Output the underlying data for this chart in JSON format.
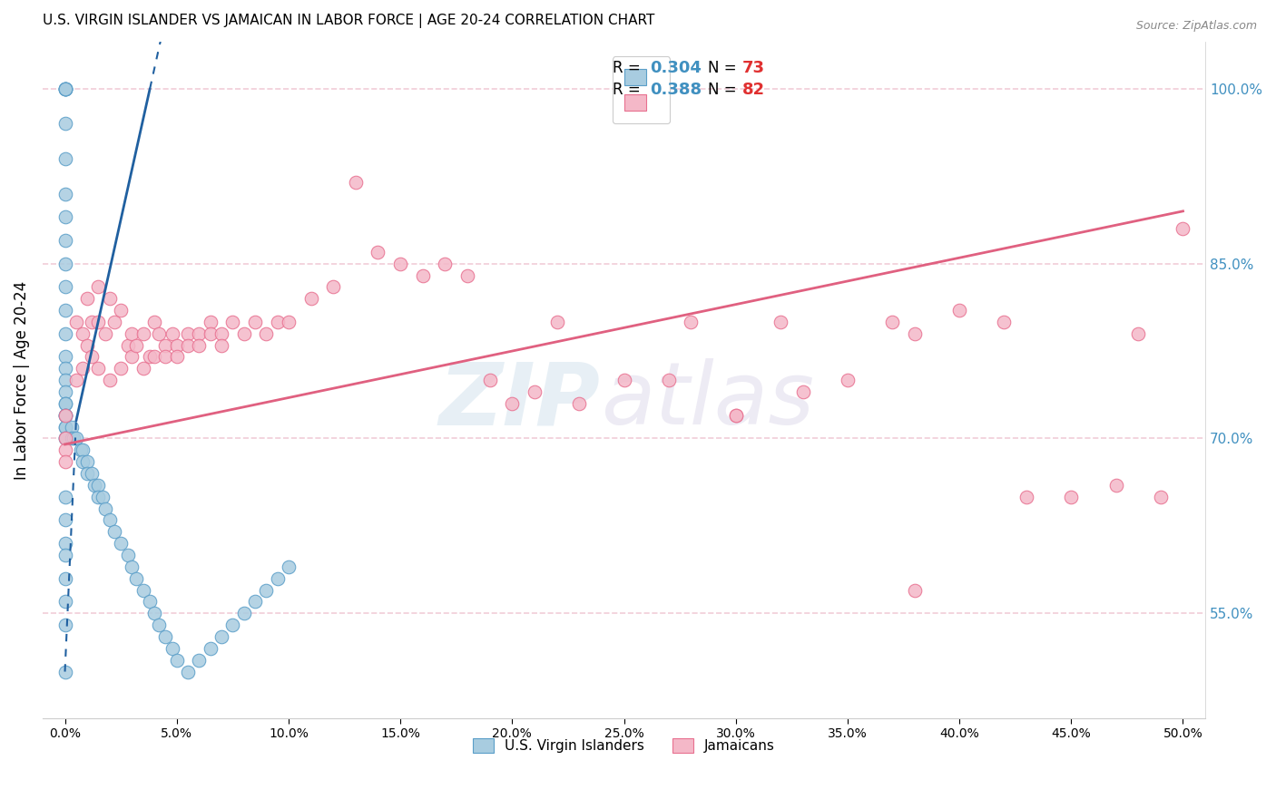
{
  "title": "U.S. VIRGIN ISLANDER VS JAMAICAN IN LABOR FORCE | AGE 20-24 CORRELATION CHART",
  "source": "Source: ZipAtlas.com",
  "ylabel": "In Labor Force | Age 20-24",
  "right_ytick_vals": [
    0.55,
    0.7,
    0.85,
    1.0
  ],
  "xlim": [
    -0.01,
    0.51
  ],
  "ylim": [
    0.46,
    1.04
  ],
  "legend1_R": "0.304",
  "legend1_N": "73",
  "legend2_R": "0.388",
  "legend2_N": "82",
  "blue_color": "#a8cce0",
  "blue_edge": "#5a9ec8",
  "pink_color": "#f4b8c8",
  "pink_edge": "#e87090",
  "blue_line_color": "#2060a0",
  "pink_line_color": "#e06080",
  "legend_R_color": "#4090c0",
  "legend_N_color": "#e03030",
  "grid_color": "#f0c8d4",
  "grid_alpha": 0.9,
  "blue_scatter_x": [
    0.0,
    0.0,
    0.0,
    0.0,
    0.0,
    0.0,
    0.0,
    0.0,
    0.0,
    0.0,
    0.0,
    0.0,
    0.0,
    0.0,
    0.0,
    0.0,
    0.0,
    0.0,
    0.0,
    0.0,
    0.0,
    0.0,
    0.0,
    0.0,
    0.0,
    0.0,
    0.0,
    0.003,
    0.003,
    0.004,
    0.005,
    0.007,
    0.008,
    0.008,
    0.01,
    0.01,
    0.012,
    0.013,
    0.015,
    0.015,
    0.017,
    0.018,
    0.02,
    0.022,
    0.025,
    0.028,
    0.03,
    0.032,
    0.035,
    0.038,
    0.04,
    0.042,
    0.045,
    0.048,
    0.05,
    0.055,
    0.06,
    0.065,
    0.07,
    0.075,
    0.08,
    0.085,
    0.09,
    0.095,
    0.1,
    0.0,
    0.0,
    0.0,
    0.0,
    0.0,
    0.0,
    0.0,
    0.0
  ],
  "blue_scatter_y": [
    1.0,
    1.0,
    1.0,
    1.0,
    1.0,
    0.97,
    0.94,
    0.91,
    0.89,
    0.87,
    0.85,
    0.83,
    0.81,
    0.79,
    0.77,
    0.76,
    0.75,
    0.74,
    0.73,
    0.73,
    0.72,
    0.72,
    0.72,
    0.71,
    0.71,
    0.7,
    0.7,
    0.71,
    0.7,
    0.7,
    0.7,
    0.69,
    0.69,
    0.68,
    0.68,
    0.67,
    0.67,
    0.66,
    0.66,
    0.65,
    0.65,
    0.64,
    0.63,
    0.62,
    0.61,
    0.6,
    0.59,
    0.58,
    0.57,
    0.56,
    0.55,
    0.54,
    0.53,
    0.52,
    0.51,
    0.5,
    0.51,
    0.52,
    0.53,
    0.54,
    0.55,
    0.56,
    0.57,
    0.58,
    0.59,
    0.65,
    0.63,
    0.61,
    0.6,
    0.58,
    0.56,
    0.54,
    0.5
  ],
  "pink_scatter_x": [
    0.0,
    0.0,
    0.0,
    0.0,
    0.005,
    0.005,
    0.008,
    0.008,
    0.01,
    0.01,
    0.012,
    0.012,
    0.015,
    0.015,
    0.015,
    0.018,
    0.02,
    0.02,
    0.022,
    0.025,
    0.025,
    0.028,
    0.03,
    0.03,
    0.032,
    0.035,
    0.035,
    0.038,
    0.04,
    0.04,
    0.042,
    0.045,
    0.045,
    0.048,
    0.05,
    0.05,
    0.055,
    0.055,
    0.06,
    0.06,
    0.065,
    0.065,
    0.07,
    0.07,
    0.075,
    0.08,
    0.085,
    0.09,
    0.095,
    0.1,
    0.11,
    0.12,
    0.13,
    0.14,
    0.15,
    0.16,
    0.17,
    0.18,
    0.19,
    0.2,
    0.21,
    0.22,
    0.23,
    0.25,
    0.27,
    0.28,
    0.3,
    0.32,
    0.33,
    0.35,
    0.37,
    0.38,
    0.4,
    0.42,
    0.43,
    0.45,
    0.47,
    0.48,
    0.49,
    0.5,
    0.3,
    0.38
  ],
  "pink_scatter_y": [
    0.72,
    0.7,
    0.69,
    0.68,
    0.8,
    0.75,
    0.79,
    0.76,
    0.82,
    0.78,
    0.8,
    0.77,
    0.83,
    0.8,
    0.76,
    0.79,
    0.82,
    0.75,
    0.8,
    0.81,
    0.76,
    0.78,
    0.79,
    0.77,
    0.78,
    0.79,
    0.76,
    0.77,
    0.8,
    0.77,
    0.79,
    0.78,
    0.77,
    0.79,
    0.78,
    0.77,
    0.79,
    0.78,
    0.79,
    0.78,
    0.8,
    0.79,
    0.79,
    0.78,
    0.8,
    0.79,
    0.8,
    0.79,
    0.8,
    0.8,
    0.82,
    0.83,
    0.92,
    0.86,
    0.85,
    0.84,
    0.85,
    0.84,
    0.75,
    0.73,
    0.74,
    0.8,
    0.73,
    0.75,
    0.75,
    0.8,
    0.72,
    0.8,
    0.74,
    0.75,
    0.8,
    0.79,
    0.81,
    0.8,
    0.65,
    0.65,
    0.66,
    0.79,
    0.65,
    0.88,
    0.72,
    0.57
  ]
}
